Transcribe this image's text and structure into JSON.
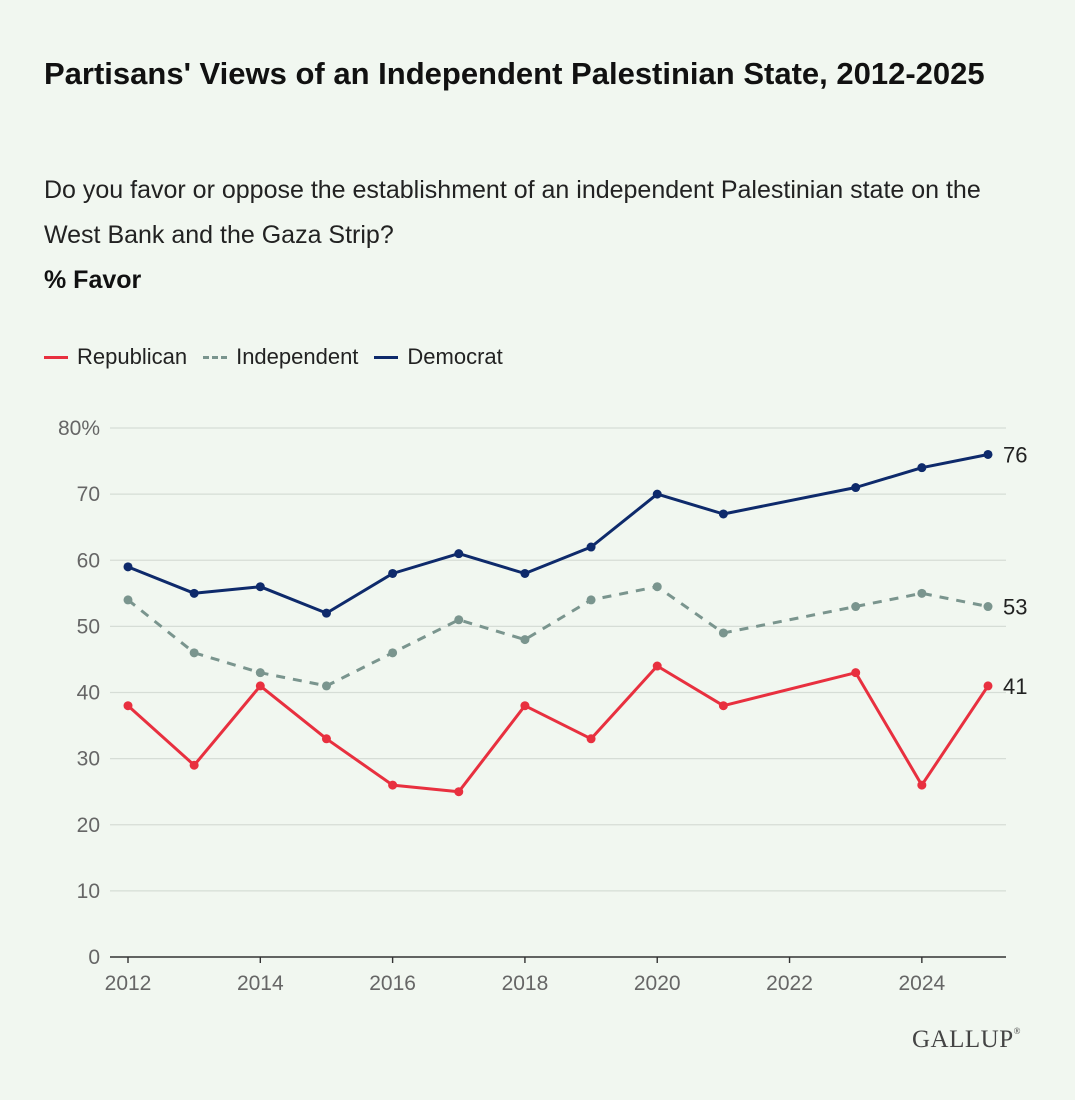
{
  "chart_data": {
    "type": "line",
    "title": "Partisans' Views of an Independent Palestinian State, 2012-2025",
    "subtitle": "Do you favor or oppose the establishment of an independent Palestinian state on the West Bank and the Gaza Strip?",
    "measure": "% Favor",
    "xlabel": "",
    "ylabel": "",
    "ylim": [
      0,
      80
    ],
    "xlim": [
      2012,
      2025
    ],
    "yticks": [
      0,
      10,
      20,
      30,
      40,
      50,
      60,
      70,
      80
    ],
    "ytick_labels": [
      "0",
      "10",
      "20",
      "30",
      "40",
      "50",
      "60",
      "70",
      "80%"
    ],
    "xticks": [
      2012,
      2014,
      2016,
      2018,
      2020,
      2022,
      2024
    ],
    "xtick_labels": [
      "2012",
      "2014",
      "2016",
      "2018",
      "2020",
      "2022",
      "2024"
    ],
    "grid": true,
    "legend_position": "top-left",
    "series": [
      {
        "name": "Republican",
        "color": "#e8303f",
        "style": "solid",
        "x": [
          2012,
          2013,
          2014,
          2015,
          2016,
          2017,
          2018,
          2019,
          2020,
          2021,
          2023,
          2024,
          2025
        ],
        "values": [
          38,
          29,
          41,
          33,
          26,
          25,
          38,
          33,
          44,
          38,
          43,
          26,
          41
        ],
        "end_label": "41"
      },
      {
        "name": "Independent",
        "color": "#7a958e",
        "style": "dashed",
        "x": [
          2012,
          2013,
          2014,
          2015,
          2016,
          2017,
          2018,
          2019,
          2020,
          2021,
          2023,
          2024,
          2025
        ],
        "values": [
          54,
          46,
          43,
          41,
          46,
          51,
          48,
          54,
          56,
          49,
          53,
          55,
          53
        ],
        "end_label": "53"
      },
      {
        "name": "Democrat",
        "color": "#0e2a6b",
        "style": "solid",
        "x": [
          2012,
          2013,
          2014,
          2015,
          2016,
          2017,
          2018,
          2019,
          2020,
          2021,
          2023,
          2024,
          2025
        ],
        "values": [
          59,
          55,
          56,
          52,
          58,
          61,
          58,
          62,
          70,
          67,
          71,
          74,
          76
        ],
        "end_label": "76"
      }
    ]
  },
  "brand": {
    "logo_text": "GALLUP",
    "logo_mark": "®"
  }
}
